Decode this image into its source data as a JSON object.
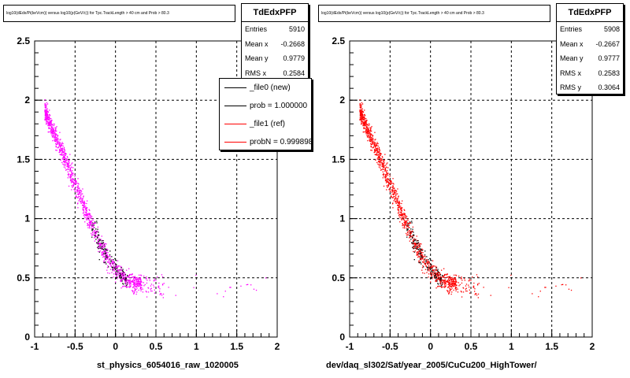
{
  "colors": {
    "left_points": "#ff00ff",
    "right_points": "#ff0000",
    "overlap_points": "#000000",
    "grid": "#000000"
  },
  "panels": [
    {
      "title": "log10(dEdx/Pi(keVcm)) versus log10(p(GeV/c)) for Tpc.TrackLength > 40 cm and Prob > 80.3",
      "stats": {
        "name": "TdEdxPFP",
        "entries_label": "Entries",
        "entries": "5910",
        "meanx_label": "Mean x",
        "meanx": "-0.2668",
        "meany_label": "Mean y",
        "meany": "0.9779",
        "rmsx_label": "RMS x",
        "rmsx": "0.2584"
      },
      "xtitle": "st_physics_6054016_raw_1020005"
    },
    {
      "title": "log10(dEdx/Pi(keVcm)) versus log10(p(GeV/c)) for Tpc.TrackLength > 40 cm and Prob > 80.3",
      "stats": {
        "name": "TdEdxPFP",
        "entries_label": "Entries",
        "entries": "5908",
        "meanx_label": "Mean x",
        "meanx": "-0.2667",
        "meany_label": "Mean y",
        "meany": "0.9777",
        "rmsx_label": "RMS x",
        "rmsx": "0.2583",
        "rmsy_label": "RMS y",
        "rmsy": "0.3064"
      },
      "xtitle": "dev/daq_sl302/Sat/year_2005/CuCu200_HighTower/"
    }
  ],
  "legend": {
    "items": [
      {
        "label": "_file0 (new)",
        "color": "#000000"
      },
      {
        "label": "prob = 1.000000",
        "color": "#000000"
      },
      {
        "label": "_file1 (ref)",
        "color": "#ff0000"
      },
      {
        "label": "probN = 0.999898",
        "color": "#ff0000"
      }
    ]
  },
  "chart_data": [
    {
      "type": "scatter",
      "title": "log10(dEdx/Pi(keVcm)) versus log10(p(GeV/c)) for Tpc.TrackLength > 40 cm and Prob > 80.3",
      "xlabel": "st_physics_6054016_raw_1020005",
      "ylabel": "",
      "xlim": [
        -1,
        2
      ],
      "ylim": [
        0,
        2.5
      ],
      "xticks": [
        "-1",
        "-0.5",
        "0",
        "0.5",
        "1",
        "1.5",
        "2"
      ],
      "yticks": [
        "0",
        "0.5",
        "1",
        "1.5",
        "2",
        "2.5"
      ],
      "grid": true,
      "series": [
        {
          "name": "_file0 (new)",
          "band_x": [
            -0.88,
            -0.8,
            -0.7,
            -0.6,
            -0.5,
            -0.4,
            -0.3,
            -0.2,
            -0.1,
            0.0,
            0.1,
            0.2,
            0.3,
            0.45
          ],
          "band_y": [
            1.92,
            1.78,
            1.62,
            1.45,
            1.28,
            1.11,
            0.95,
            0.8,
            0.67,
            0.57,
            0.5,
            0.46,
            0.45,
            0.44
          ],
          "n_points": 5910
        }
      ]
    },
    {
      "type": "scatter",
      "title": "log10(dEdx/Pi(keVcm)) versus log10(p(GeV/c)) for Tpc.TrackLength > 40 cm and Prob > 80.3",
      "xlabel": "dev/daq_sl302/Sat/year_2005/CuCu200_HighTower/",
      "ylabel": "",
      "xlim": [
        -1,
        2
      ],
      "ylim": [
        0,
        2.5
      ],
      "xticks": [
        "-1",
        "-0.5",
        "0",
        "0.5",
        "1",
        "1.5",
        "2"
      ],
      "yticks": [
        "0",
        "0.5",
        "1",
        "1.5",
        "2",
        "2.5"
      ],
      "grid": true,
      "series": [
        {
          "name": "_file1 (ref)",
          "band_x": [
            -0.88,
            -0.8,
            -0.7,
            -0.6,
            -0.5,
            -0.4,
            -0.3,
            -0.2,
            -0.1,
            0.0,
            0.1,
            0.2,
            0.3,
            0.45
          ],
          "band_y": [
            1.92,
            1.78,
            1.62,
            1.45,
            1.28,
            1.11,
            0.95,
            0.8,
            0.67,
            0.57,
            0.5,
            0.46,
            0.45,
            0.44
          ],
          "n_points": 5908
        }
      ]
    }
  ]
}
